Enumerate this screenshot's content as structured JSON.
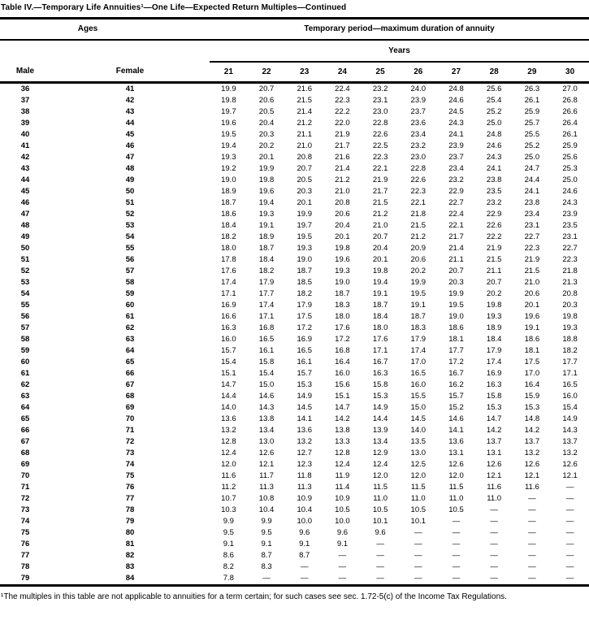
{
  "title": "Table IV.—Temporary Life Annuities¹—One Life—Expected Return Multiples—Continued",
  "table": {
    "ages_header": "Ages",
    "period_header": "Temporary period—maximum duration of annuity",
    "years_header": "Years",
    "male_header": "Male",
    "female_header": "Female",
    "year_columns": [
      "21",
      "22",
      "23",
      "24",
      "25",
      "26",
      "27",
      "28",
      "29",
      "30"
    ],
    "rows": [
      {
        "male": "36",
        "female": "41",
        "values": [
          "19.9",
          "20.7",
          "21.6",
          "22.4",
          "23.2",
          "24.0",
          "24.8",
          "25.6",
          "26.3",
          "27.0"
        ]
      },
      {
        "male": "37",
        "female": "42",
        "values": [
          "19.8",
          "20.6",
          "21.5",
          "22.3",
          "23.1",
          "23.9",
          "24.6",
          "25.4",
          "26.1",
          "26.8"
        ]
      },
      {
        "male": "38",
        "female": "43",
        "values": [
          "19.7",
          "20.5",
          "21.4",
          "22.2",
          "23.0",
          "23.7",
          "24.5",
          "25.2",
          "25.9",
          "26.6"
        ]
      },
      {
        "male": "39",
        "female": "44",
        "values": [
          "19.6",
          "20.4",
          "21.2",
          "22.0",
          "22.8",
          "23.6",
          "24.3",
          "25.0",
          "25.7",
          "26.4"
        ]
      },
      {
        "male": "40",
        "female": "45",
        "values": [
          "19.5",
          "20.3",
          "21.1",
          "21.9",
          "22.6",
          "23.4",
          "24.1",
          "24.8",
          "25.5",
          "26.1"
        ]
      },
      {
        "male": "41",
        "female": "46",
        "values": [
          "19.4",
          "20.2",
          "21.0",
          "21.7",
          "22.5",
          "23.2",
          "23.9",
          "24.6",
          "25.2",
          "25.9"
        ]
      },
      {
        "male": "42",
        "female": "47",
        "values": [
          "19.3",
          "20.1",
          "20.8",
          "21.6",
          "22.3",
          "23.0",
          "23.7",
          "24.3",
          "25.0",
          "25.6"
        ]
      },
      {
        "male": "43",
        "female": "48",
        "values": [
          "19.2",
          "19.9",
          "20.7",
          "21.4",
          "22.1",
          "22.8",
          "23.4",
          "24.1",
          "24.7",
          "25.3"
        ]
      },
      {
        "male": "44",
        "female": "49",
        "values": [
          "19.0",
          "19.8",
          "20.5",
          "21.2",
          "21.9",
          "22.6",
          "23.2",
          "23.8",
          "24.4",
          "25.0"
        ]
      },
      {
        "male": "45",
        "female": "50",
        "values": [
          "18.9",
          "19.6",
          "20.3",
          "21.0",
          "21.7",
          "22.3",
          "22.9",
          "23.5",
          "24.1",
          "24.6"
        ]
      },
      {
        "male": "46",
        "female": "51",
        "values": [
          "18.7",
          "19.4",
          "20.1",
          "20.8",
          "21.5",
          "22.1",
          "22.7",
          "23.2",
          "23.8",
          "24.3"
        ]
      },
      {
        "male": "47",
        "female": "52",
        "values": [
          "18.6",
          "19.3",
          "19.9",
          "20.6",
          "21.2",
          "21.8",
          "22.4",
          "22.9",
          "23.4",
          "23.9"
        ]
      },
      {
        "male": "48",
        "female": "53",
        "values": [
          "18.4",
          "19.1",
          "19.7",
          "20.4",
          "21.0",
          "21.5",
          "22.1",
          "22.6",
          "23.1",
          "23.5"
        ]
      },
      {
        "male": "49",
        "female": "54",
        "values": [
          "18.2",
          "18.9",
          "19.5",
          "20.1",
          "20.7",
          "21.2",
          "21.7",
          "22.2",
          "22.7",
          "23.1"
        ]
      },
      {
        "male": "50",
        "female": "55",
        "values": [
          "18.0",
          "18.7",
          "19.3",
          "19.8",
          "20.4",
          "20.9",
          "21.4",
          "21.9",
          "22.3",
          "22.7"
        ]
      },
      {
        "male": "51",
        "female": "56",
        "values": [
          "17.8",
          "18.4",
          "19.0",
          "19.6",
          "20.1",
          "20.6",
          "21.1",
          "21.5",
          "21.9",
          "22.3"
        ]
      },
      {
        "male": "52",
        "female": "57",
        "values": [
          "17.6",
          "18.2",
          "18.7",
          "19.3",
          "19.8",
          "20.2",
          "20.7",
          "21.1",
          "21.5",
          "21.8"
        ]
      },
      {
        "male": "53",
        "female": "58",
        "values": [
          "17.4",
          "17.9",
          "18.5",
          "19.0",
          "19.4",
          "19.9",
          "20.3",
          "20.7",
          "21.0",
          "21.3"
        ]
      },
      {
        "male": "54",
        "female": "59",
        "values": [
          "17.1",
          "17.7",
          "18.2",
          "18.7",
          "19.1",
          "19.5",
          "19.9",
          "20.2",
          "20.6",
          "20.8"
        ]
      },
      {
        "male": "55",
        "female": "60",
        "values": [
          "16.9",
          "17.4",
          "17.9",
          "18.3",
          "18.7",
          "19.1",
          "19.5",
          "19.8",
          "20.1",
          "20.3"
        ]
      },
      {
        "male": "56",
        "female": "61",
        "values": [
          "16.6",
          "17.1",
          "17.5",
          "18.0",
          "18.4",
          "18.7",
          "19.0",
          "19.3",
          "19.6",
          "19.8"
        ]
      },
      {
        "male": "57",
        "female": "62",
        "values": [
          "16.3",
          "16.8",
          "17.2",
          "17.6",
          "18.0",
          "18.3",
          "18.6",
          "18.9",
          "19.1",
          "19.3"
        ]
      },
      {
        "male": "58",
        "female": "63",
        "values": [
          "16.0",
          "16.5",
          "16.9",
          "17.2",
          "17.6",
          "17.9",
          "18.1",
          "18.4",
          "18.6",
          "18.8"
        ]
      },
      {
        "male": "59",
        "female": "64",
        "values": [
          "15.7",
          "16.1",
          "16.5",
          "16.8",
          "17.1",
          "17.4",
          "17.7",
          "17.9",
          "18.1",
          "18.2"
        ]
      },
      {
        "male": "60",
        "female": "65",
        "values": [
          "15.4",
          "15.8",
          "16.1",
          "16.4",
          "16.7",
          "17.0",
          "17.2",
          "17.4",
          "17.5",
          "17.7"
        ]
      },
      {
        "male": "61",
        "female": "66",
        "values": [
          "15.1",
          "15.4",
          "15.7",
          "16.0",
          "16.3",
          "16.5",
          "16.7",
          "16.9",
          "17.0",
          "17.1"
        ]
      },
      {
        "male": "62",
        "female": "67",
        "values": [
          "14.7",
          "15.0",
          "15.3",
          "15.6",
          "15.8",
          "16.0",
          "16.2",
          "16.3",
          "16.4",
          "16.5"
        ]
      },
      {
        "male": "63",
        "female": "68",
        "values": [
          "14.4",
          "14.6",
          "14.9",
          "15.1",
          "15.3",
          "15.5",
          "15.7",
          "15.8",
          "15.9",
          "16.0"
        ]
      },
      {
        "male": "64",
        "female": "69",
        "values": [
          "14.0",
          "14.3",
          "14.5",
          "14.7",
          "14.9",
          "15.0",
          "15.2",
          "15.3",
          "15.3",
          "15.4"
        ]
      },
      {
        "male": "65",
        "female": "70",
        "values": [
          "13.6",
          "13.8",
          "14.1",
          "14.2",
          "14.4",
          "14.5",
          "14.6",
          "14.7",
          "14.8",
          "14.9"
        ]
      },
      {
        "male": "66",
        "female": "71",
        "values": [
          "13.2",
          "13.4",
          "13.6",
          "13.8",
          "13.9",
          "14.0",
          "14.1",
          "14.2",
          "14.2",
          "14.3"
        ]
      },
      {
        "male": "67",
        "female": "72",
        "values": [
          "12.8",
          "13.0",
          "13.2",
          "13.3",
          "13.4",
          "13.5",
          "13.6",
          "13.7",
          "13.7",
          "13.7"
        ]
      },
      {
        "male": "68",
        "female": "73",
        "values": [
          "12.4",
          "12.6",
          "12.7",
          "12.8",
          "12.9",
          "13.0",
          "13.1",
          "13.1",
          "13.2",
          "13.2"
        ]
      },
      {
        "male": "69",
        "female": "74",
        "values": [
          "12.0",
          "12.1",
          "12.3",
          "12.4",
          "12.4",
          "12.5",
          "12.6",
          "12.6",
          "12.6",
          "12.6"
        ]
      },
      {
        "male": "70",
        "female": "75",
        "values": [
          "11.6",
          "11.7",
          "11.8",
          "11.9",
          "12.0",
          "12.0",
          "12.0",
          "12.1",
          "12.1",
          "12.1"
        ]
      },
      {
        "male": "71",
        "female": "76",
        "values": [
          "11.2",
          "11.3",
          "11.3",
          "11.4",
          "11.5",
          "11.5",
          "11.5",
          "11.6",
          "11.6",
          "—"
        ]
      },
      {
        "male": "72",
        "female": "77",
        "values": [
          "10.7",
          "10.8",
          "10.9",
          "10.9",
          "11.0",
          "11.0",
          "11.0",
          "11.0",
          "—",
          "—"
        ]
      },
      {
        "male": "73",
        "female": "78",
        "values": [
          "10.3",
          "10.4",
          "10.4",
          "10.5",
          "10.5",
          "10.5",
          "10.5",
          "—",
          "—",
          "—"
        ]
      },
      {
        "male": "74",
        "female": "79",
        "values": [
          "9.9",
          "9.9",
          "10.0",
          "10.0",
          "10.1",
          "10.1",
          "—",
          "—",
          "—",
          "—"
        ]
      },
      {
        "male": "75",
        "female": "80",
        "values": [
          "9.5",
          "9.5",
          "9.6",
          "9.6",
          "9.6",
          "—",
          "—",
          "—",
          "—",
          "—"
        ]
      },
      {
        "male": "76",
        "female": "81",
        "values": [
          "9.1",
          "9.1",
          "9.1",
          "9.1",
          "—",
          "—",
          "—",
          "—",
          "—",
          "—"
        ]
      },
      {
        "male": "77",
        "female": "82",
        "values": [
          "8.6",
          "8.7",
          "8.7",
          "—",
          "—",
          "—",
          "—",
          "—",
          "—",
          "—"
        ]
      },
      {
        "male": "78",
        "female": "83",
        "values": [
          "8.2",
          "8.3",
          "—",
          "—",
          "—",
          "—",
          "—",
          "—",
          "—",
          "—"
        ]
      },
      {
        "male": "79",
        "female": "84",
        "values": [
          "7.8",
          "—",
          "—",
          "—",
          "—",
          "—",
          "—",
          "—",
          "—",
          "—"
        ]
      }
    ]
  },
  "footnote": "¹The multiples in this table are not applicable to annuities for a term certain; for such cases see sec. 1.72-5(c) of the Income Tax Regulations."
}
